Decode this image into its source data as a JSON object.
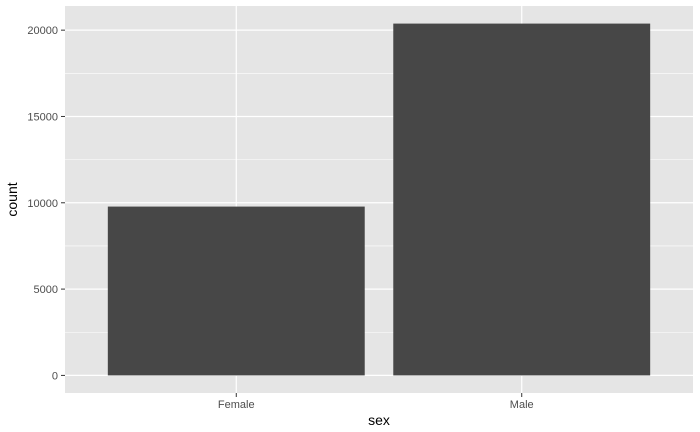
{
  "chart_data": {
    "type": "bar",
    "categories": [
      "Female",
      "Male"
    ],
    "values": [
      9780,
      20380
    ],
    "xlabel": "sex",
    "ylabel": "count",
    "ylim": [
      -1019,
      21399
    ],
    "yticks": [
      0,
      5000,
      10000,
      15000,
      20000
    ],
    "ytick_labels": [
      "0",
      "5000",
      "10000",
      "15000",
      "20000"
    ],
    "grid": true,
    "legend": "none"
  },
  "colors": {
    "panel_background": "#e5e5e5",
    "gridline": "#ffffff",
    "bar_fill": "#474747",
    "tick_text": "#4d4d4d",
    "axis_title": "#000000"
  }
}
